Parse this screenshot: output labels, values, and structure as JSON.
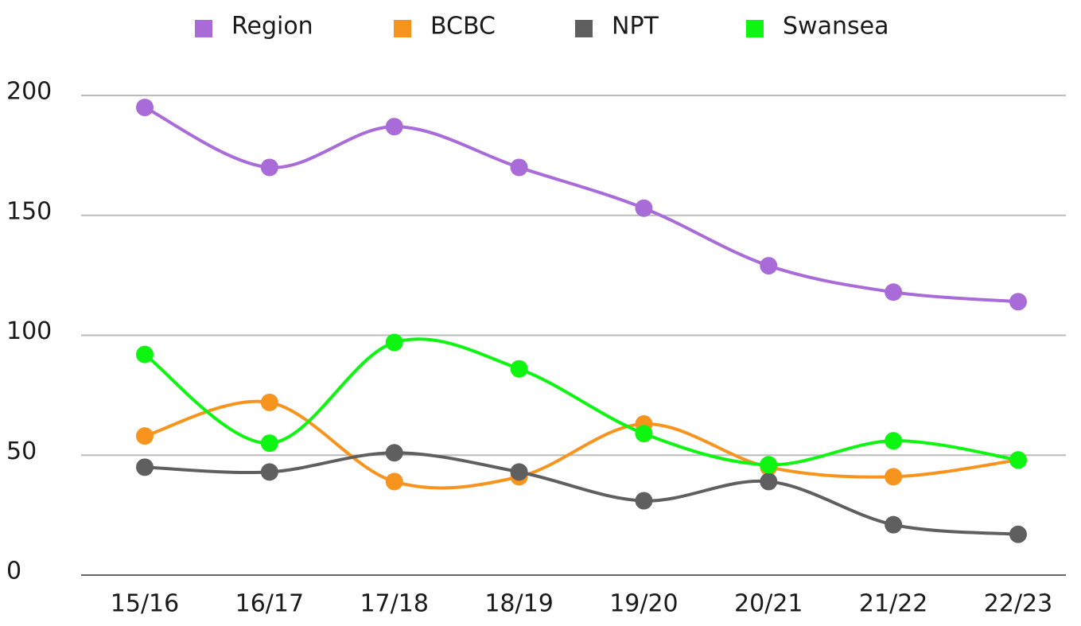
{
  "chart_data": {
    "type": "line",
    "categories": [
      "15/16",
      "16/17",
      "17/18",
      "18/19",
      "19/20",
      "20/21",
      "21/22",
      "22/23"
    ],
    "series": [
      {
        "name": "Region",
        "color": "#a96bd8",
        "values": [
          195,
          170,
          187,
          170,
          153,
          129,
          118,
          114
        ]
      },
      {
        "name": "BCBC",
        "color": "#f7941d",
        "values": [
          58,
          72,
          39,
          41,
          63,
          45,
          41,
          48
        ]
      },
      {
        "name": "NPT",
        "color": "#5f5f5f",
        "values": [
          45,
          43,
          51,
          43,
          31,
          39,
          21,
          17
        ]
      },
      {
        "name": "Swansea",
        "color": "#0ff512",
        "values": [
          92,
          55,
          97,
          86,
          59,
          46,
          56,
          48
        ]
      }
    ],
    "ylim": [
      0,
      200
    ],
    "yticks": [
      0,
      50,
      100,
      150,
      200
    ],
    "grid": true,
    "smooth": true,
    "legend": "top"
  }
}
